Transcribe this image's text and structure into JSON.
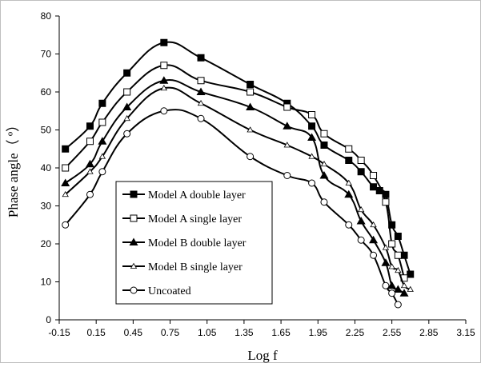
{
  "chart_data": {
    "type": "line",
    "xlabel": "Log f",
    "ylabel": "Phase angle（ º）",
    "xlim": [
      -0.15,
      3.15
    ],
    "ylim": [
      0,
      80
    ],
    "x_ticks": [
      "-0.15",
      "0.15",
      "0.45",
      "0.75",
      "1.05",
      "1.35",
      "1.65",
      "1.95",
      "2.25",
      "2.55",
      "2.85",
      "3.15"
    ],
    "y_ticks": [
      "0",
      "10",
      "20",
      "30",
      "40",
      "50",
      "60",
      "70",
      "80"
    ],
    "legend_position": "bottom-left",
    "series": [
      {
        "name": "Model A double layer",
        "marker": "filled-square",
        "color": "#000000",
        "x": [
          -0.1,
          0.1,
          0.2,
          0.4,
          0.7,
          1.0,
          1.4,
          1.7,
          1.9,
          2.0,
          2.2,
          2.3,
          2.4,
          2.45,
          2.5,
          2.55,
          2.6,
          2.65,
          2.7
        ],
        "y": [
          45,
          51,
          57,
          65,
          73,
          69,
          62,
          57,
          51,
          46,
          42,
          39,
          35,
          34,
          33,
          25,
          22,
          17,
          12
        ]
      },
      {
        "name": "Model A single layer",
        "marker": "open-square",
        "color": "#000000",
        "x": [
          -0.1,
          0.1,
          0.2,
          0.4,
          0.7,
          1.0,
          1.4,
          1.7,
          1.9,
          2.0,
          2.2,
          2.3,
          2.4,
          2.5,
          2.55,
          2.6,
          2.65
        ],
        "y": [
          40,
          47,
          52,
          60,
          67,
          63,
          60,
          56,
          54,
          49,
          45,
          42,
          38,
          31,
          20,
          17,
          11
        ]
      },
      {
        "name": "Model B double layer",
        "marker": "filled-triangle",
        "color": "#000000",
        "x": [
          -0.1,
          0.1,
          0.2,
          0.4,
          0.7,
          1.0,
          1.4,
          1.7,
          1.9,
          2.0,
          2.2,
          2.3,
          2.4,
          2.5,
          2.55,
          2.6,
          2.65
        ],
        "y": [
          36,
          41,
          47,
          56,
          63,
          60,
          56,
          51,
          48,
          38,
          33,
          26,
          21,
          15,
          9,
          8,
          7
        ]
      },
      {
        "name": "Model B single layer",
        "marker": "small-triangle",
        "color": "#000000",
        "x": [
          -0.1,
          0.1,
          0.2,
          0.4,
          0.7,
          1.0,
          1.4,
          1.7,
          1.9,
          2.0,
          2.2,
          2.3,
          2.4,
          2.5,
          2.55,
          2.6,
          2.65,
          2.7
        ],
        "y": [
          33,
          39,
          43,
          53,
          61,
          57,
          50,
          46,
          43,
          41,
          36,
          29,
          25,
          19,
          14,
          13,
          9,
          8
        ]
      },
      {
        "name": "Uncoated",
        "marker": "open-circle",
        "color": "#000000",
        "x": [
          -0.1,
          0.1,
          0.2,
          0.4,
          0.7,
          1.0,
          1.4,
          1.7,
          1.9,
          2.0,
          2.2,
          2.3,
          2.4,
          2.5,
          2.55,
          2.6
        ],
        "y": [
          25,
          33,
          39,
          49,
          55,
          53,
          43,
          38,
          36,
          31,
          25,
          21,
          17,
          9,
          7,
          4
        ]
      }
    ]
  }
}
